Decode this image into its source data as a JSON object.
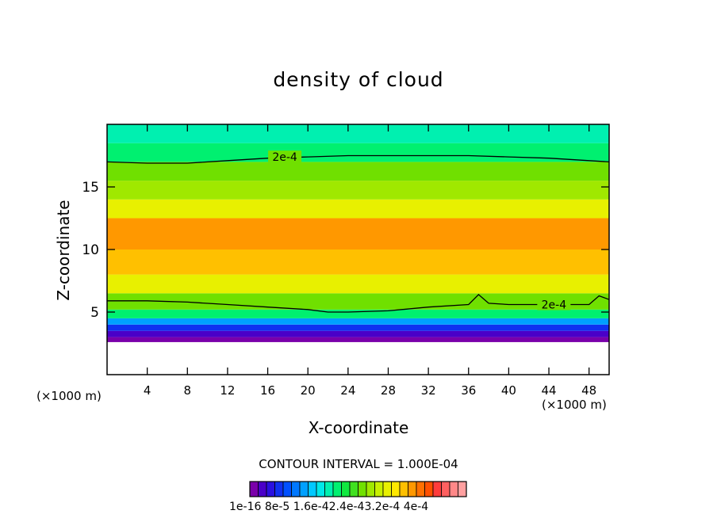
{
  "chart_data": {
    "type": "heatmap",
    "title": "density of cloud",
    "xlabel": "X-coordinate",
    "ylabel": "Z-coordinate",
    "x_unit": "(×1000 m)",
    "xlim": [
      0,
      50
    ],
    "ylim": [
      0,
      20
    ],
    "x_ticks": [
      "4",
      "8",
      "12",
      "16",
      "20",
      "24",
      "28",
      "32",
      "36",
      "40",
      "44",
      "48"
    ],
    "y_ticks": [
      "5",
      "10",
      "15"
    ],
    "contour_interval_text": "CONTOUR INTERVAL = 1.000E-04",
    "contour_label": "2e-4",
    "contour_level": 0.0002,
    "colorbar_labels": "1e-16 8e-5 1.6e-42.4e-43.2e-4 4e-4",
    "colorbar_range": [
      0,
      0.0004
    ],
    "colorbar_colors": [
      "#7a00aa",
      "#4a00c8",
      "#2a10e0",
      "#1030f0",
      "#0050ff",
      "#0078ff",
      "#00a0ff",
      "#00c8ff",
      "#00e8e8",
      "#00f0b0",
      "#00f070",
      "#10e840",
      "#40e020",
      "#70e000",
      "#a0e800",
      "#c8f000",
      "#e8f000",
      "#ffe800",
      "#ffc000",
      "#ff9800",
      "#ff7000",
      "#ff5000",
      "#ff3c3c",
      "#ff6060",
      "#ff8888",
      "#ffa0a0"
    ],
    "bands": [
      {
        "z": [
          0,
          2.6
        ],
        "value": null
      },
      {
        "z": [
          2.6,
          3.0
        ],
        "value": 1e-05
      },
      {
        "z": [
          3.0,
          3.5
        ],
        "value": 3e-05
      },
      {
        "z": [
          3.5,
          4.0
        ],
        "value": 6e-05
      },
      {
        "z": [
          4.0,
          4.5
        ],
        "value": 0.0001
      },
      {
        "z": [
          4.5,
          5.2
        ],
        "value": 0.00016
      },
      {
        "z": [
          5.2,
          6.5
        ],
        "value": 0.00021
      },
      {
        "z": [
          6.5,
          8.0
        ],
        "value": 0.00025
      },
      {
        "z": [
          8.0,
          10.0
        ],
        "value": 0.00028
      },
      {
        "z": [
          10.0,
          12.5
        ],
        "value": 0.0003
      },
      {
        "z": [
          12.5,
          14.0
        ],
        "value": 0.00026
      },
      {
        "z": [
          14.0,
          15.5
        ],
        "value": 0.00023
      },
      {
        "z": [
          15.5,
          17.0
        ],
        "value": 0.0002
      },
      {
        "z": [
          17.0,
          18.5
        ],
        "value": 0.00016
      },
      {
        "z": [
          18.5,
          20.0
        ],
        "value": 0.00014
      }
    ],
    "contours": [
      {
        "name": "upper",
        "points": [
          [
            0,
            17.0
          ],
          [
            4,
            16.9
          ],
          [
            8,
            16.9
          ],
          [
            12,
            17.1
          ],
          [
            16,
            17.3
          ],
          [
            20,
            17.4
          ],
          [
            24,
            17.5
          ],
          [
            28,
            17.5
          ],
          [
            32,
            17.5
          ],
          [
            36,
            17.5
          ],
          [
            40,
            17.4
          ],
          [
            44,
            17.3
          ],
          [
            48,
            17.1
          ],
          [
            50,
            17.0
          ]
        ]
      },
      {
        "name": "lower",
        "points": [
          [
            0,
            5.9
          ],
          [
            4,
            5.9
          ],
          [
            8,
            5.8
          ],
          [
            12,
            5.6
          ],
          [
            16,
            5.4
          ],
          [
            20,
            5.2
          ],
          [
            22,
            5.0
          ],
          [
            24,
            5.0
          ],
          [
            28,
            5.1
          ],
          [
            32,
            5.4
          ],
          [
            36,
            5.6
          ],
          [
            37,
            6.4
          ],
          [
            38,
            5.7
          ],
          [
            40,
            5.6
          ],
          [
            44,
            5.6
          ],
          [
            48,
            5.6
          ],
          [
            49,
            6.3
          ],
          [
            50,
            6.0
          ]
        ]
      }
    ]
  }
}
